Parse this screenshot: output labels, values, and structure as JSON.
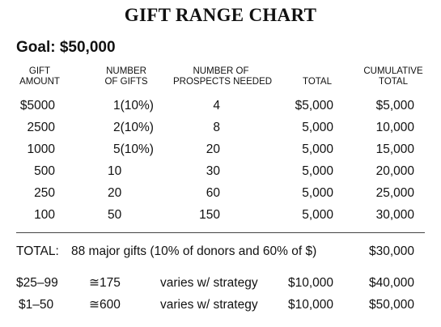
{
  "title": "GIFT RANGE CHART",
  "goal": "Goal: $50,000",
  "headers": {
    "gift_amount": [
      "GIFT",
      "AMOUNT"
    ],
    "number_of_gifts": [
      "NUMBER",
      "OF GIFTS"
    ],
    "prospects_needed": [
      "NUMBER OF",
      "PROSPECTS NEEDED"
    ],
    "total": "TOTAL",
    "cumulative": [
      "CUMULATIVE",
      "TOTAL"
    ]
  },
  "rows": [
    {
      "amount": "$5000",
      "gifts": "1(10%)",
      "prospects": "4",
      "total": "$5,000",
      "cumulative": "$5,000"
    },
    {
      "amount": "2500",
      "gifts": "2(10%)",
      "prospects": "8",
      "total": "5,000",
      "cumulative": "10,000"
    },
    {
      "amount": "1000",
      "gifts": "5(10%)",
      "prospects": "20",
      "total": "5,000",
      "cumulative": "15,000"
    },
    {
      "amount": "500",
      "gifts": "10",
      "prospects": "30",
      "total": "5,000",
      "cumulative": "20,000"
    },
    {
      "amount": "250",
      "gifts": "20",
      "prospects": "60",
      "total": "5,000",
      "cumulative": "25,000"
    },
    {
      "amount": "100",
      "gifts": "50",
      "prospects": "150",
      "total": "5,000",
      "cumulative": "30,000"
    }
  ],
  "total_row": {
    "label": "TOTAL:",
    "description": "88 major gifts (10% of donors and 60% of $)",
    "cumulative": "$30,000"
  },
  "extra_rows": [
    {
      "range": "$25–99",
      "count": "≅175",
      "strategy": "varies w/ strategy",
      "total": "$10,000",
      "cumulative": "$40,000"
    },
    {
      "range": "$1–50",
      "count": "≅600",
      "strategy": "varies w/ strategy",
      "total": "$10,000",
      "cumulative": "$50,000"
    }
  ]
}
